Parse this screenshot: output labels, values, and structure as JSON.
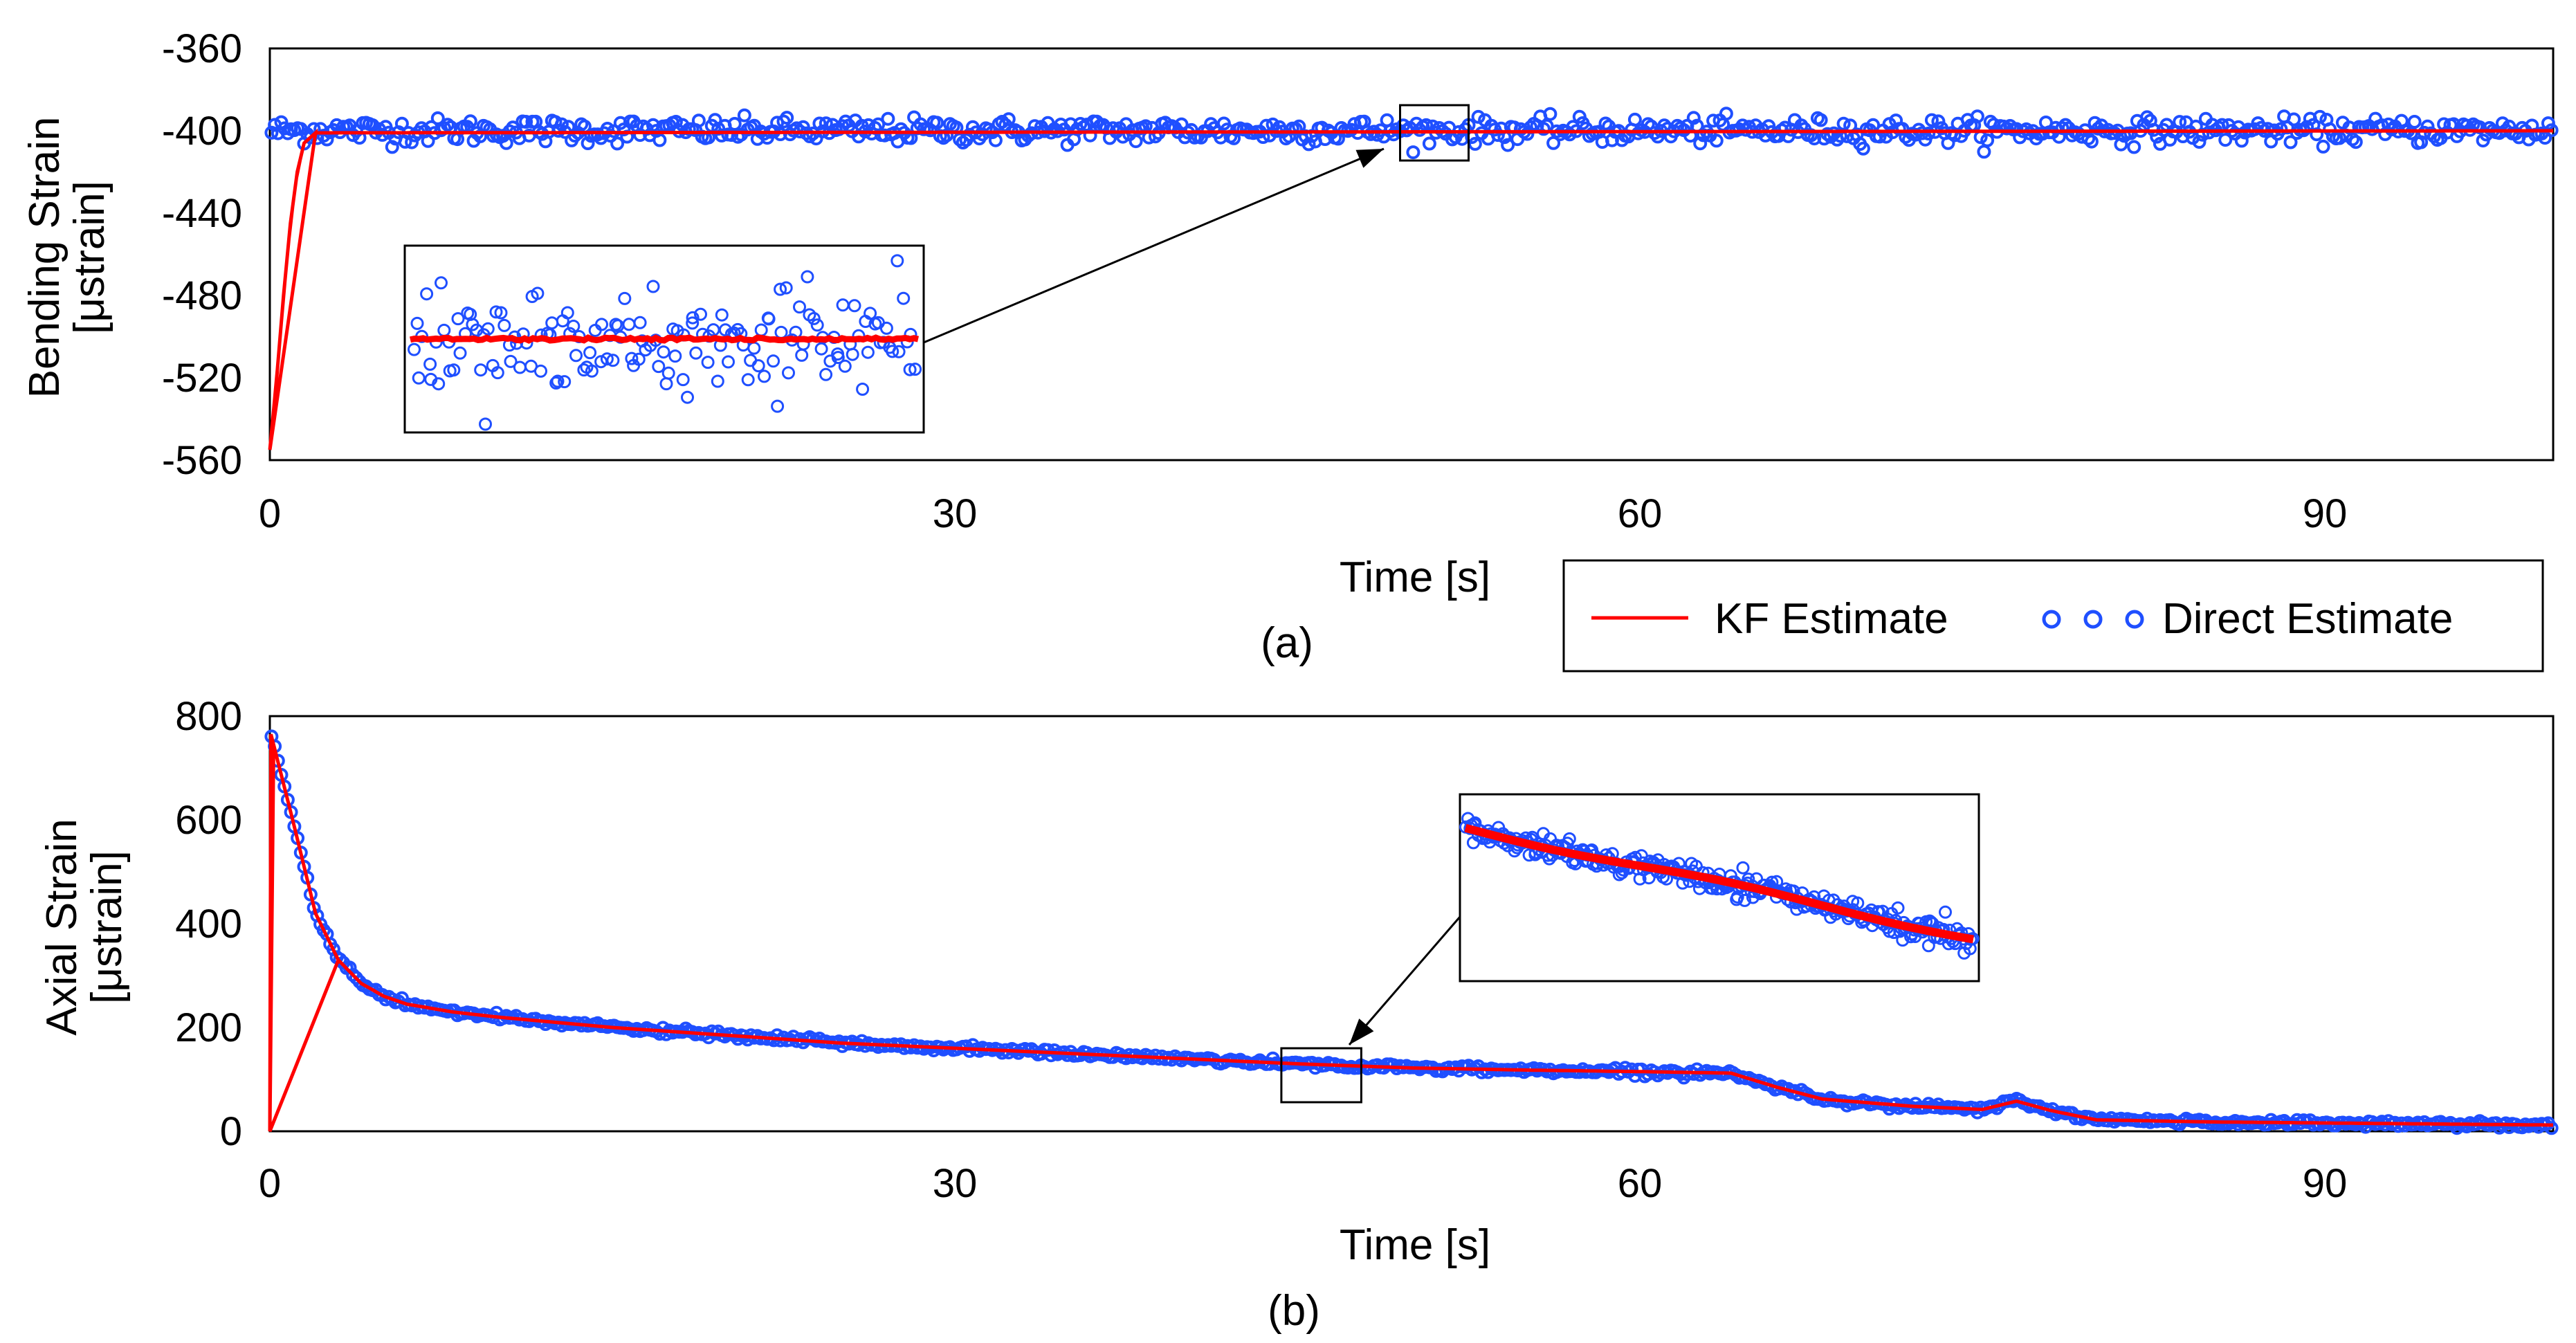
{
  "chart_data": [
    {
      "panel": "(a)",
      "type": "line",
      "caption": "(a)",
      "xlabel": "Time [s]",
      "ylabel_line1": "Bending Strain",
      "ylabel_line2": "[μstrain]",
      "xlim": [
        0,
        100
      ],
      "ylim": [
        -560,
        -360
      ],
      "xticks": [
        0,
        30,
        60,
        90
      ],
      "xtick_labels": [
        "0",
        "30",
        "60",
        "90"
      ],
      "yticks": [
        -360,
        -400,
        -440,
        -480,
        -520,
        -560
      ],
      "ytick_labels": [
        "-360",
        "-400",
        "-440",
        "-480",
        "-520",
        "-560"
      ],
      "grid": false,
      "series": [
        {
          "name": "KF Estimate",
          "style": "line",
          "color": "#ff0000",
          "description": "starts at -555 at t=0 and converges to about -400 by t=1.5 s, then flat",
          "points": [
            [
              0,
              -555
            ],
            [
              0.3,
              -520
            ],
            [
              0.6,
              -480
            ],
            [
              0.9,
              -445
            ],
            [
              1.2,
              -420
            ],
            [
              1.5,
              -406
            ],
            [
              2,
              -401
            ],
            [
              100,
              -400
            ]
          ]
        },
        {
          "name": "Direct Estimate",
          "style": "markers",
          "marker": "open-circle",
          "color": "#1f4fff",
          "description": "noisy scatter centered at -400 with spread of about ±5",
          "center": -400,
          "spread": 5
        }
      ],
      "zoom_box_x": [
        49.5,
        52.5
      ],
      "inset": {
        "kf_line_level": 0.5,
        "direct_spread": 0.42,
        "direct_count": 160
      },
      "legend": {
        "position": "bottom-right",
        "entries": [
          "KF Estimate",
          "Direct Estimate"
        ]
      }
    },
    {
      "panel": "(b)",
      "type": "line",
      "caption": "(b)",
      "xlabel": "Time [s]",
      "ylabel_line1": "Axial Strain",
      "ylabel_line2": "[μstrain]",
      "xlim": [
        0,
        100
      ],
      "ylim": [
        0,
        800
      ],
      "xticks": [
        0,
        30,
        60,
        90
      ],
      "xtick_labels": [
        "0",
        "30",
        "60",
        "90"
      ],
      "yticks": [
        0,
        200,
        400,
        600,
        800
      ],
      "ytick_labels": [
        "0",
        "200",
        "400",
        "600",
        "800"
      ],
      "grid": false,
      "series": [
        {
          "name": "KF Estimate",
          "style": "line",
          "color": "#ff0000",
          "description": "starts near 0 at t=0, jumps to about 765, then decays",
          "points": [
            [
              0,
              0
            ],
            [
              0.05,
              765
            ],
            [
              1,
              600
            ],
            [
              2,
              420
            ],
            [
              3,
              330
            ],
            [
              4,
              285
            ],
            [
              5,
              260
            ],
            [
              6,
              245
            ],
            [
              8,
              230
            ],
            [
              10,
              220
            ],
            [
              15,
              200
            ],
            [
              20,
              185
            ],
            [
              25,
              170
            ],
            [
              30,
              160
            ],
            [
              35,
              150
            ],
            [
              40,
              140
            ],
            [
              45,
              130
            ],
            [
              50,
              122
            ],
            [
              55,
              118
            ],
            [
              60,
              115
            ],
            [
              64,
              112
            ],
            [
              66,
              85
            ],
            [
              68,
              62
            ],
            [
              72,
              48
            ],
            [
              75,
              42
            ],
            [
              76.5,
              58
            ],
            [
              78,
              40
            ],
            [
              80,
              22
            ],
            [
              85,
              18
            ],
            [
              90,
              16
            ],
            [
              95,
              14
            ],
            [
              100,
              12
            ]
          ]
        },
        {
          "name": "Direct Estimate",
          "style": "markers",
          "marker": "open-circle",
          "color": "#1f4fff",
          "description": "dense noisy scatter tightly following the KF curve with spread of about ±5",
          "spread": 5
        }
      ],
      "zoom_box_x": [
        44.3,
        47.8
      ],
      "inset": {
        "kf_start": 0.82,
        "kf_end": 0.23,
        "direct_spread": 0.07,
        "direct_count": 320
      }
    }
  ]
}
